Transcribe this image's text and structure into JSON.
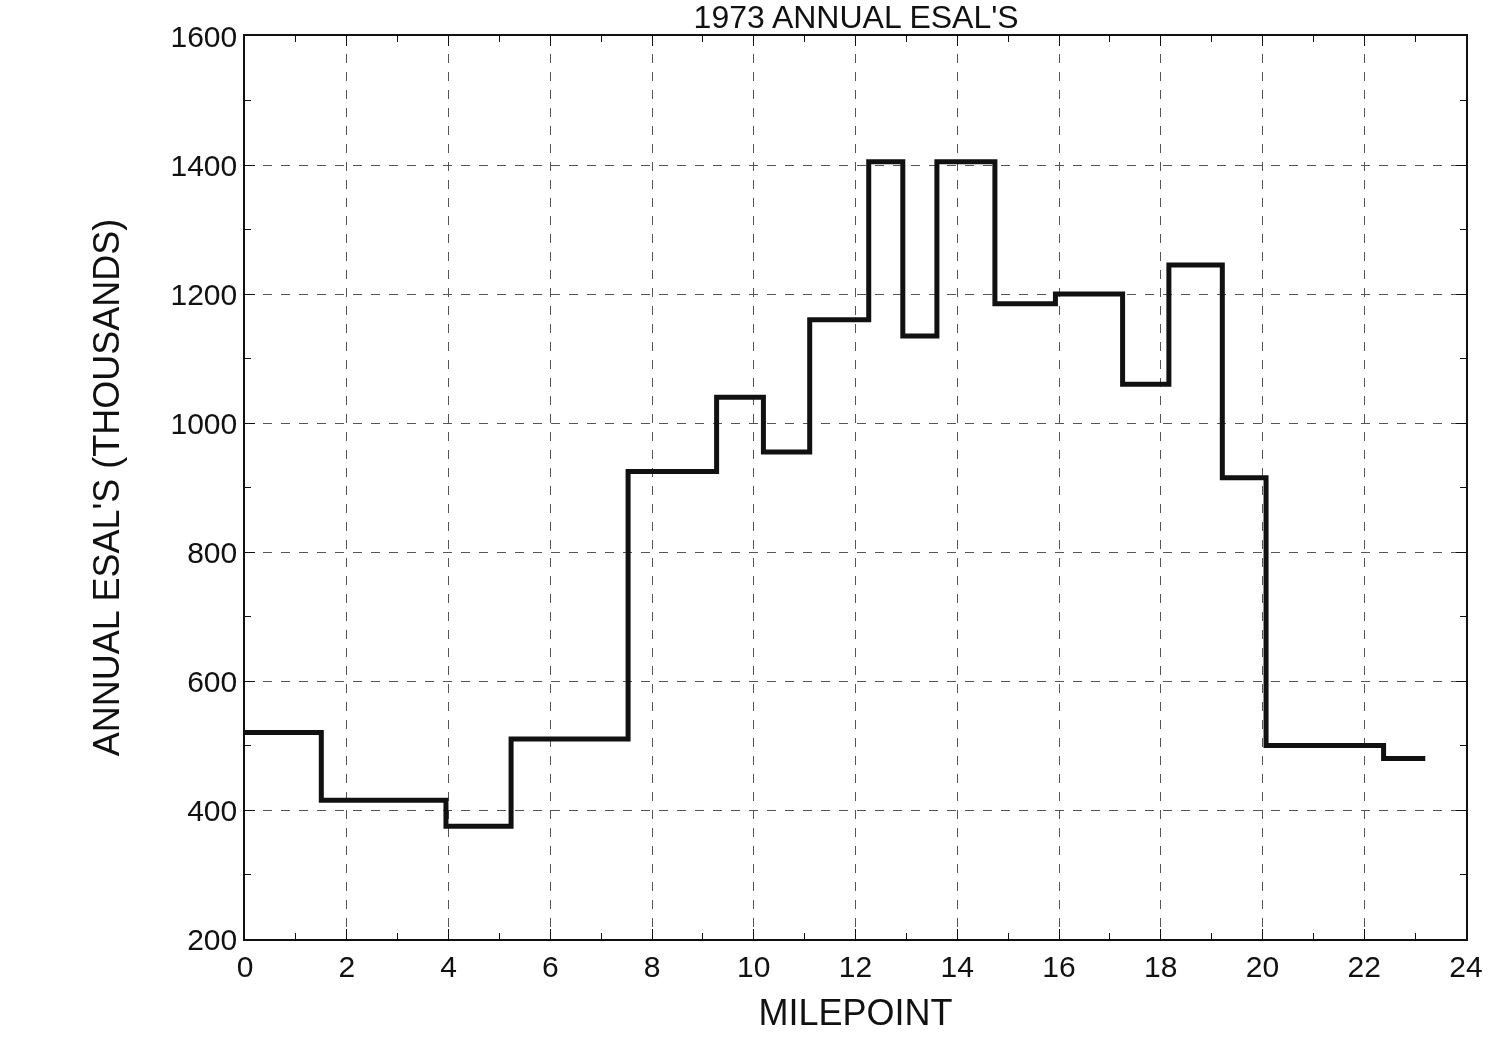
{
  "chart_data": {
    "type": "step",
    "title": "1973 ANNUAL ESAL'S",
    "xlabel": "MILEPOINT",
    "ylabel": "ANNUAL ESAL'S (THOUSANDS)",
    "x": [
      0,
      1.5,
      3.95,
      5.23,
      7.53,
      9.27,
      10.19,
      11.1,
      12.26,
      12.93,
      13.6,
      14.74,
      15.93,
      17.25,
      18.16,
      19.21,
      20.07,
      22.38,
      23.2
    ],
    "series": [
      {
        "color": "#111111",
        "values": [
          520,
          415,
          375,
          510,
          925,
          1040,
          955,
          1160,
          1405,
          1135,
          1405,
          1185,
          1200,
          1060,
          1245,
          915,
          500,
          480,
          480
        ]
      }
    ],
    "xlim": [
      0,
      24
    ],
    "xticks": [
      0,
      2,
      4,
      6,
      8,
      10,
      12,
      14,
      16,
      18,
      20,
      22,
      24
    ],
    "ylim": [
      200,
      1600
    ],
    "yticks": [
      200,
      400,
      600,
      800,
      1000,
      1200,
      1400,
      1600
    ],
    "grid": true,
    "line_style": "solid",
    "marker": "none"
  }
}
